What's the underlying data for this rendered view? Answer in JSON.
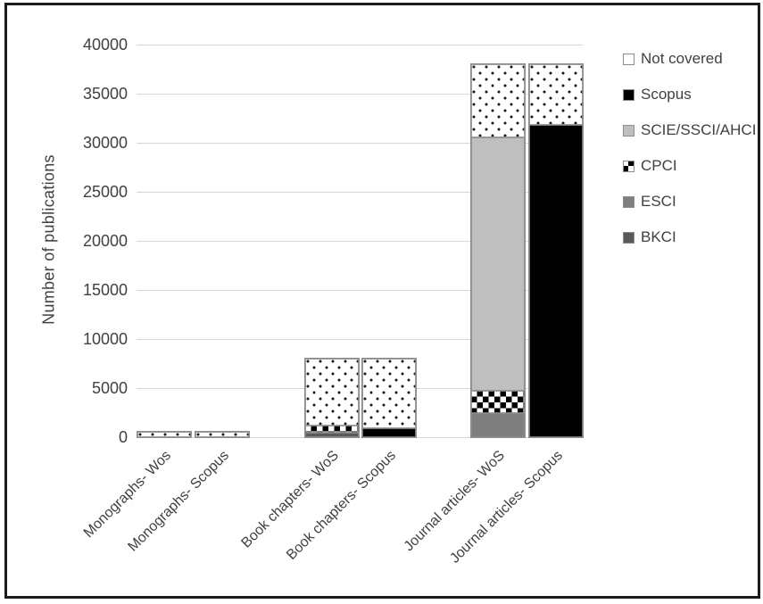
{
  "chart_data": {
    "type": "bar",
    "stacked": true,
    "title": "",
    "xlabel": "",
    "ylabel": "Number of publications",
    "ylim": [
      0,
      40000
    ],
    "ytick_step": 5000,
    "grid": true,
    "legend_position": "right",
    "categories": [
      "Monographs- Wos",
      "Monographs- Scopus",
      "Book chapters- WoS",
      "Book chapters- Scopus",
      "Journal articles- WoS",
      "Journal articles- Scopus"
    ],
    "series": [
      {
        "name": "BKCI",
        "pattern": "solid",
        "color": "#595959",
        "values": [
          0,
          0,
          400,
          0,
          0,
          0
        ]
      },
      {
        "name": "ESCI",
        "pattern": "solid",
        "color": "#7f7f7f",
        "values": [
          0,
          0,
          0,
          0,
          2400,
          0
        ]
      },
      {
        "name": "CPCI",
        "pattern": "checker",
        "color": "#000000",
        "values": [
          0,
          0,
          700,
          0,
          2300,
          0
        ]
      },
      {
        "name": "SCIE/SSCI/AHCI",
        "pattern": "solid",
        "color": "#bfbfbf",
        "values": [
          0,
          0,
          0,
          0,
          25800,
          0
        ]
      },
      {
        "name": "Scopus",
        "pattern": "solid",
        "color": "#000000",
        "values": [
          0,
          0,
          0,
          900,
          0,
          31800
        ]
      },
      {
        "name": "Not covered",
        "pattern": "dots",
        "color": "#ffffff",
        "values": [
          500,
          500,
          6900,
          7100,
          7500,
          6200
        ]
      }
    ],
    "legend_order": "reverse_of_series",
    "bar_totals": [
      500,
      500,
      8000,
      8000,
      38000,
      38000
    ]
  }
}
